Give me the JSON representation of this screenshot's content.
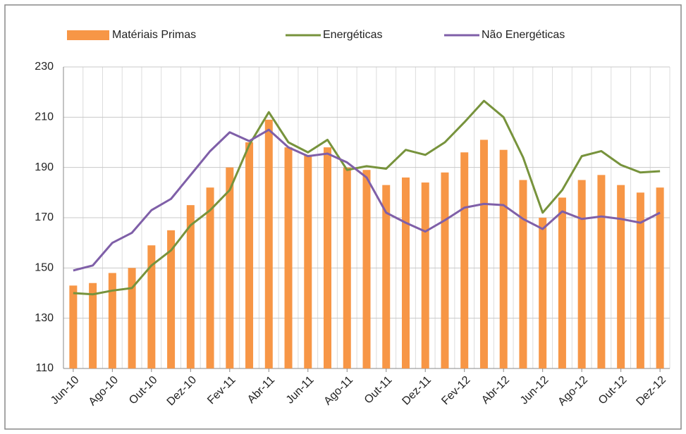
{
  "chart_data": {
    "type": "bar_line",
    "categories": [
      "Jun-10",
      null,
      "Ago-10",
      null,
      "Out-10",
      null,
      "Dez-10",
      null,
      "Fev-11",
      null,
      "Abr-11",
      null,
      "Jun-11",
      null,
      "Ago-11",
      null,
      "Out-11",
      null,
      "Dez-11",
      null,
      "Fev-12",
      null,
      "Abr-12",
      null,
      "Jun-12",
      null,
      "Ago-12",
      null,
      "Out-12",
      null,
      "Dez-12"
    ],
    "series": [
      {
        "name": "Matériais Primas",
        "type": "bar",
        "color": "#f79646",
        "values": [
          143,
          144,
          148,
          150,
          159,
          165,
          175,
          182,
          190,
          200,
          209,
          198,
          195,
          198,
          190,
          189,
          183,
          186,
          184,
          188,
          196,
          201,
          197,
          185,
          170,
          178,
          185,
          187,
          183,
          180,
          182
        ]
      },
      {
        "name": "Energéticas",
        "type": "line",
        "color": "#77933c",
        "values": [
          140,
          139.5,
          141,
          142,
          151,
          157,
          167,
          173,
          181,
          199,
          212,
          200,
          196,
          201,
          189,
          190.5,
          189.5,
          197,
          195,
          200,
          208,
          216.5,
          210,
          194,
          172,
          181,
          194.5,
          196.5,
          191,
          188,
          188.5
        ]
      },
      {
        "name": "Não Energéticas",
        "type": "line",
        "color": "#7f5fa8",
        "values": [
          149,
          151,
          160,
          164,
          173,
          177.5,
          187,
          196.5,
          204,
          200.5,
          205,
          198,
          194.5,
          195.5,
          192,
          186,
          172,
          168,
          164.5,
          169,
          174,
          175.5,
          175,
          169.5,
          165.5,
          172.5,
          169.5,
          170.5,
          169.5,
          168,
          172
        ]
      }
    ],
    "ylim": [
      110,
      230
    ],
    "yticks": [
      110,
      130,
      150,
      170,
      190,
      210,
      230
    ],
    "grid": true,
    "legend": "top"
  }
}
